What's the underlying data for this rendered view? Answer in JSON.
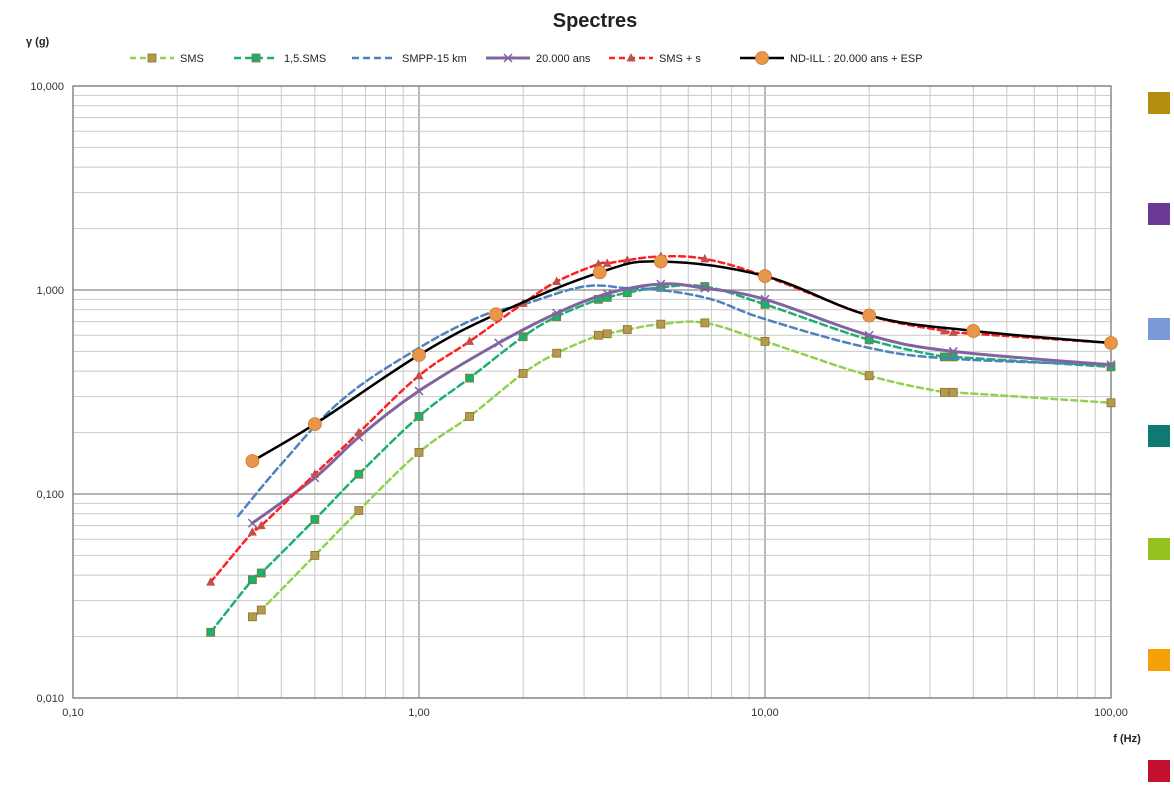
{
  "chart_data": {
    "type": "line",
    "title": "Spectres",
    "xlabel": "f (Hz)",
    "ylabel": "γ (g)",
    "xscale": "log",
    "yscale": "log",
    "xlim": [
      0.1,
      100
    ],
    "ylim": [
      0.01,
      10
    ],
    "grid": true,
    "legend_position": "top",
    "x_ticks": [
      {
        "value": 0.1,
        "label": "0,10"
      },
      {
        "value": 1,
        "label": "1,00"
      },
      {
        "value": 10,
        "label": "10,00"
      },
      {
        "value": 100,
        "label": "100,00"
      }
    ],
    "y_ticks": [
      {
        "value": 0.01,
        "label": "0,010"
      },
      {
        "value": 0.1,
        "label": "0,100"
      },
      {
        "value": 1,
        "label": "1,000"
      },
      {
        "value": 10,
        "label": "10,000"
      }
    ],
    "series": [
      {
        "name": "SMS",
        "color": "#92d050",
        "dash": "6,4",
        "width": 2.5,
        "marker": "square",
        "marker_color": "#b49a4a",
        "points": [
          [
            0.33,
            0.025
          ],
          [
            0.35,
            0.027
          ],
          [
            0.5,
            0.05
          ],
          [
            0.67,
            0.083
          ],
          [
            1,
            0.16
          ],
          [
            1.4,
            0.24
          ],
          [
            2,
            0.39
          ],
          [
            2.5,
            0.49
          ],
          [
            3.3,
            0.6
          ],
          [
            3.5,
            0.61
          ],
          [
            4,
            0.64
          ],
          [
            5,
            0.68
          ],
          [
            6.7,
            0.69
          ],
          [
            10,
            0.56
          ],
          [
            20,
            0.38
          ],
          [
            33,
            0.315
          ],
          [
            35,
            0.315
          ],
          [
            100,
            0.28
          ]
        ]
      },
      {
        "name": "1,5.SMS",
        "color": "#1cb070",
        "dash": "7,4",
        "width": 2.5,
        "marker": "square",
        "marker_color": "#1cb070",
        "points": [
          [
            0.25,
            0.021
          ],
          [
            0.33,
            0.038
          ],
          [
            0.35,
            0.041
          ],
          [
            0.5,
            0.075
          ],
          [
            0.67,
            0.125
          ],
          [
            1,
            0.24
          ],
          [
            1.4,
            0.37
          ],
          [
            2,
            0.59
          ],
          [
            2.5,
            0.74
          ],
          [
            3.3,
            0.9
          ],
          [
            3.5,
            0.92
          ],
          [
            4,
            0.97
          ],
          [
            5,
            1.03
          ],
          [
            6.7,
            1.04
          ],
          [
            10,
            0.85
          ],
          [
            20,
            0.57
          ],
          [
            33,
            0.47
          ],
          [
            35,
            0.47
          ],
          [
            100,
            0.42
          ]
        ]
      },
      {
        "name": "SMPP-15 km",
        "color": "#4f81bd",
        "dash": "7,4",
        "width": 2.5,
        "marker": "none",
        "marker_color": "#4f81bd",
        "points": [
          [
            0.3,
            0.078
          ],
          [
            0.4,
            0.14
          ],
          [
            0.6,
            0.29
          ],
          [
            1,
            0.52
          ],
          [
            1.5,
            0.74
          ],
          [
            2,
            0.85
          ],
          [
            3,
            1.04
          ],
          [
            4,
            1.02
          ],
          [
            5,
            1.0
          ],
          [
            7,
            0.9
          ],
          [
            10,
            0.72
          ],
          [
            20,
            0.52
          ],
          [
            35,
            0.46
          ],
          [
            100,
            0.43
          ]
        ]
      },
      {
        "name": "20.000 ans",
        "color": "#8064a2",
        "dash": "",
        "width": 3,
        "marker": "x",
        "marker_color": "#8064a2",
        "points": [
          [
            0.33,
            0.072
          ],
          [
            0.5,
            0.12
          ],
          [
            0.67,
            0.19
          ],
          [
            1,
            0.32
          ],
          [
            1.7,
            0.55
          ],
          [
            2.5,
            0.77
          ],
          [
            3.5,
            0.96
          ],
          [
            5,
            1.07
          ],
          [
            6.7,
            1.02
          ],
          [
            10,
            0.9
          ],
          [
            20,
            0.6
          ],
          [
            35,
            0.5
          ],
          [
            100,
            0.43
          ]
        ]
      },
      {
        "name": "SMS + s",
        "color": "#ff2020",
        "dash": "6,4",
        "width": 2.5,
        "marker": "triangle",
        "marker_color": "#c0504d",
        "points": [
          [
            0.25,
            0.037
          ],
          [
            0.33,
            0.065
          ],
          [
            0.35,
            0.07
          ],
          [
            0.5,
            0.125
          ],
          [
            0.67,
            0.2
          ],
          [
            1,
            0.38
          ],
          [
            1.4,
            0.56
          ],
          [
            2,
            0.86
          ],
          [
            2.5,
            1.1
          ],
          [
            3.3,
            1.34
          ],
          [
            3.5,
            1.35
          ],
          [
            4,
            1.4
          ],
          [
            5,
            1.46
          ],
          [
            6.7,
            1.42
          ],
          [
            10,
            1.17
          ],
          [
            20,
            0.75
          ],
          [
            33,
            0.63
          ],
          [
            35,
            0.62
          ],
          [
            100,
            0.55
          ]
        ]
      },
      {
        "name": "ND-ILL : 20.000 ans + ESP",
        "color": "#000000",
        "dash": "",
        "width": 2.5,
        "marker": "circle",
        "marker_color": "#e8964a",
        "points": [
          [
            0.33,
            0.145
          ],
          [
            0.5,
            0.22
          ],
          [
            1,
            0.48
          ],
          [
            1.67,
            0.76
          ],
          [
            3.33,
            1.22
          ],
          [
            5,
            1.38
          ],
          [
            10,
            1.17
          ],
          [
            20,
            0.75
          ],
          [
            40,
            0.63
          ],
          [
            100,
            0.55
          ]
        ]
      }
    ],
    "side_legend_colors": [
      "#b48e0e",
      "#6b3a96",
      "#7a9ad6",
      "#0e7a72",
      "#94c11f",
      "#f5a20a",
      "#c2102e"
    ]
  }
}
